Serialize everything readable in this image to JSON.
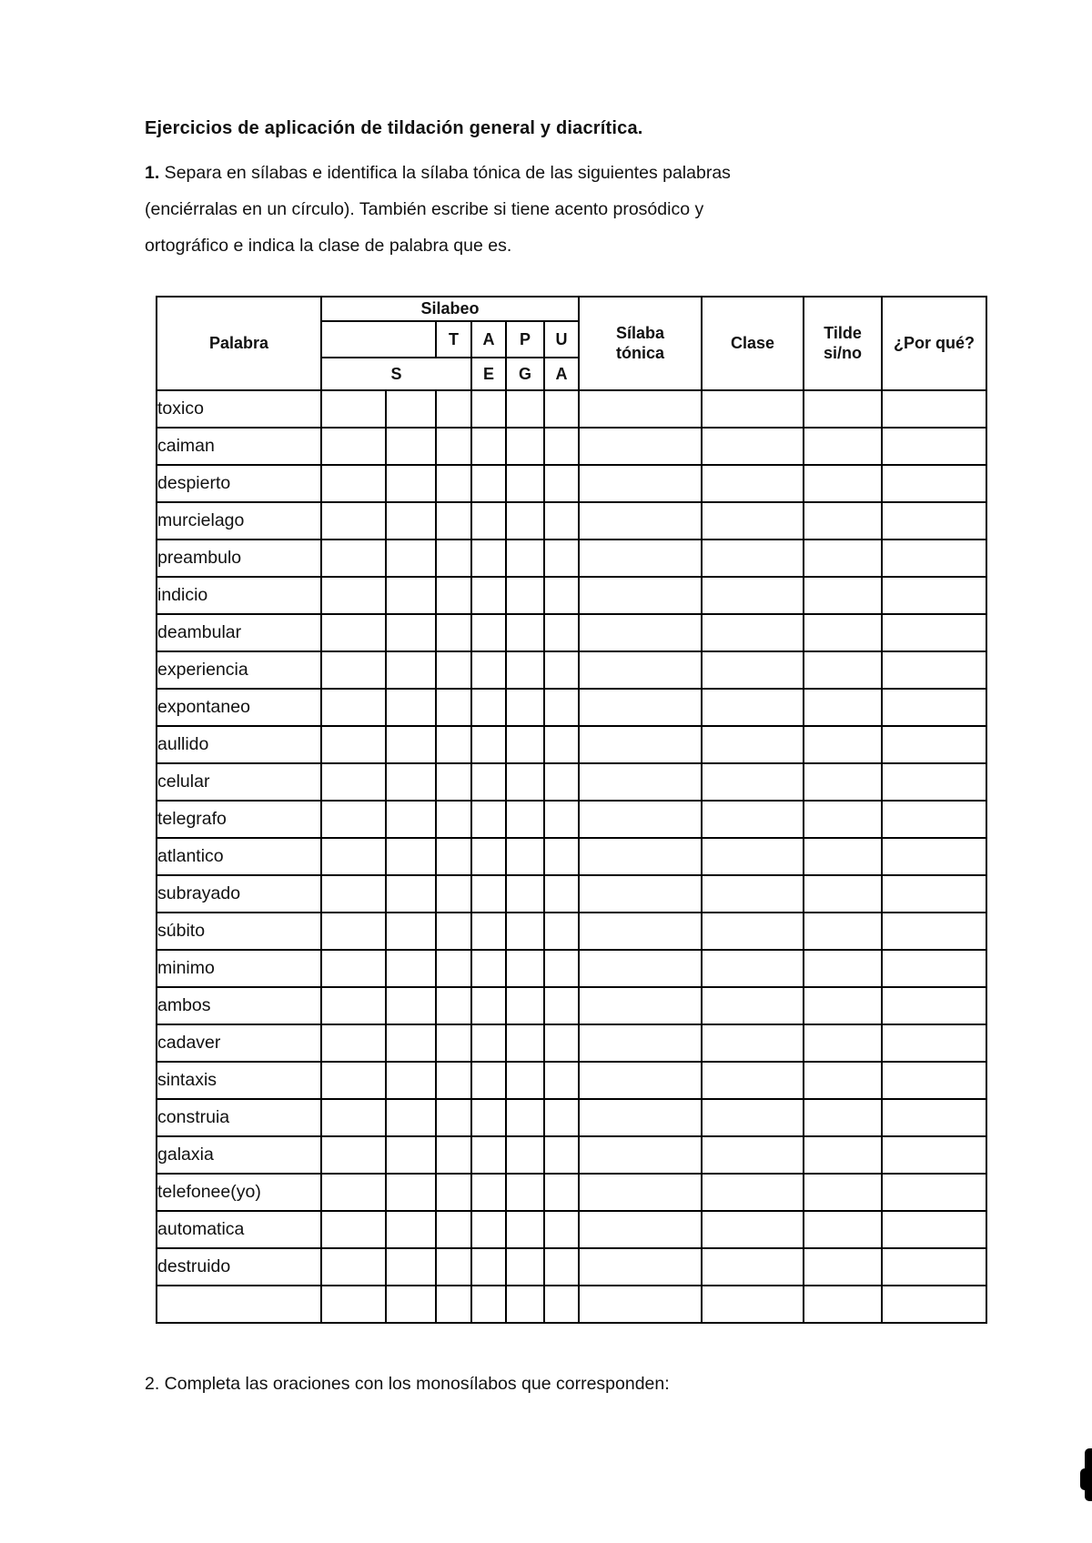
{
  "title": "Ejercicios de aplicación de tildación general y diacrítica.",
  "exercise1": {
    "number": "1.",
    "line1": " Separa en sílabas e identifica la sílaba tónica de las siguientes palabras",
    "line2": "(enciérralas en un círculo). También escribe si tiene acento prosódico y",
    "line3": "ortográfico e indica la clase de palabra que es."
  },
  "table": {
    "headers": {
      "palabra": "Palabra",
      "silabeo": "Silabeo",
      "row2": [
        "",
        "T",
        "A",
        "P",
        "U"
      ],
      "row3": [
        "S",
        "E",
        "G",
        "A"
      ],
      "silaba_tonica": "Sílaba\ntónica",
      "clase": "Clase",
      "tilde": "Tilde\nsi/no",
      "porque": "¿Por qué?"
    },
    "words": [
      "toxico",
      "caiman",
      "despierto",
      "murcielago",
      "preambulo",
      "indicio",
      "deambular",
      "experiencia",
      "expontaneo",
      "aullido",
      "celular",
      "telegrafo",
      "atlantico",
      "subrayado",
      "súbito",
      "minimo",
      "ambos",
      "cadaver",
      "sintaxis",
      "construia",
      "galaxia",
      "telefonee(yo)",
      "automatica",
      "destruido",
      ""
    ]
  },
  "exercise2": "2. Completa las oraciones con los monosílabos que corresponden:",
  "colors": {
    "ink": "#111111",
    "border": "#000000",
    "background": "#ffffff"
  }
}
